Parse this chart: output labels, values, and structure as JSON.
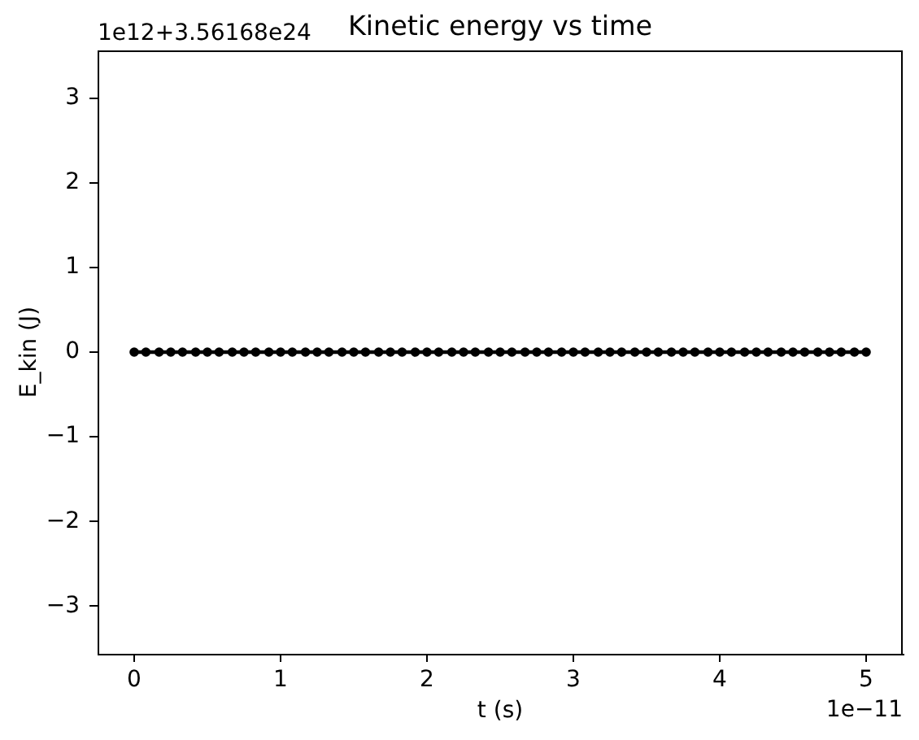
{
  "chart_data": {
    "type": "line",
    "title": "Kinetic energy vs time",
    "xlabel": "t (s)",
    "ylabel": "E_kin (J)",
    "annotations": [
      "1e12+3.56168e24",
      "1e−11"
    ],
    "x": [
      0,
      0.08,
      0.17,
      0.25,
      0.33,
      0.42,
      0.5,
      0.58,
      0.67,
      0.75,
      0.83,
      0.92,
      1,
      1.08,
      1.17,
      1.25,
      1.33,
      1.42,
      1.5,
      1.58,
      1.67,
      1.75,
      1.83,
      1.92,
      2,
      2.08,
      2.17,
      2.25,
      2.33,
      2.42,
      2.5,
      2.58,
      2.67,
      2.75,
      2.83,
      2.92,
      3,
      3.08,
      3.17,
      3.25,
      3.33,
      3.42,
      3.5,
      3.58,
      3.67,
      3.75,
      3.83,
      3.92,
      4,
      4.08,
      4.17,
      4.25,
      4.33,
      4.42,
      4.5,
      4.58,
      4.67,
      4.75,
      4.83,
      4.92,
      5
    ],
    "series": [
      {
        "color": "#000000",
        "values": [
          0,
          0,
          0,
          0,
          0,
          0,
          0,
          0,
          0,
          0,
          0,
          0,
          0,
          0,
          0,
          0,
          0,
          0,
          0,
          0,
          0,
          0,
          0,
          0,
          0,
          0,
          0,
          0,
          0,
          0,
          0,
          0,
          0,
          0,
          0,
          0,
          0,
          0,
          0,
          0,
          0,
          0,
          0,
          0,
          0,
          0,
          0,
          0,
          0,
          0,
          0,
          0,
          0,
          0,
          0,
          0,
          0,
          0,
          0,
          0,
          0
        ]
      }
    ],
    "xlim": [
      -0.25,
      5.25
    ],
    "ylim": [
      -3.56,
      3.56
    ],
    "xticks": [
      0,
      1,
      2,
      3,
      4,
      5
    ],
    "yticks": [
      {
        "value": -3,
        "label": "−3"
      },
      {
        "value": -2,
        "label": "−2"
      },
      {
        "value": -1,
        "label": "−1"
      },
      0,
      1,
      2,
      3
    ],
    "marker": "circle",
    "line_style": "solid"
  }
}
